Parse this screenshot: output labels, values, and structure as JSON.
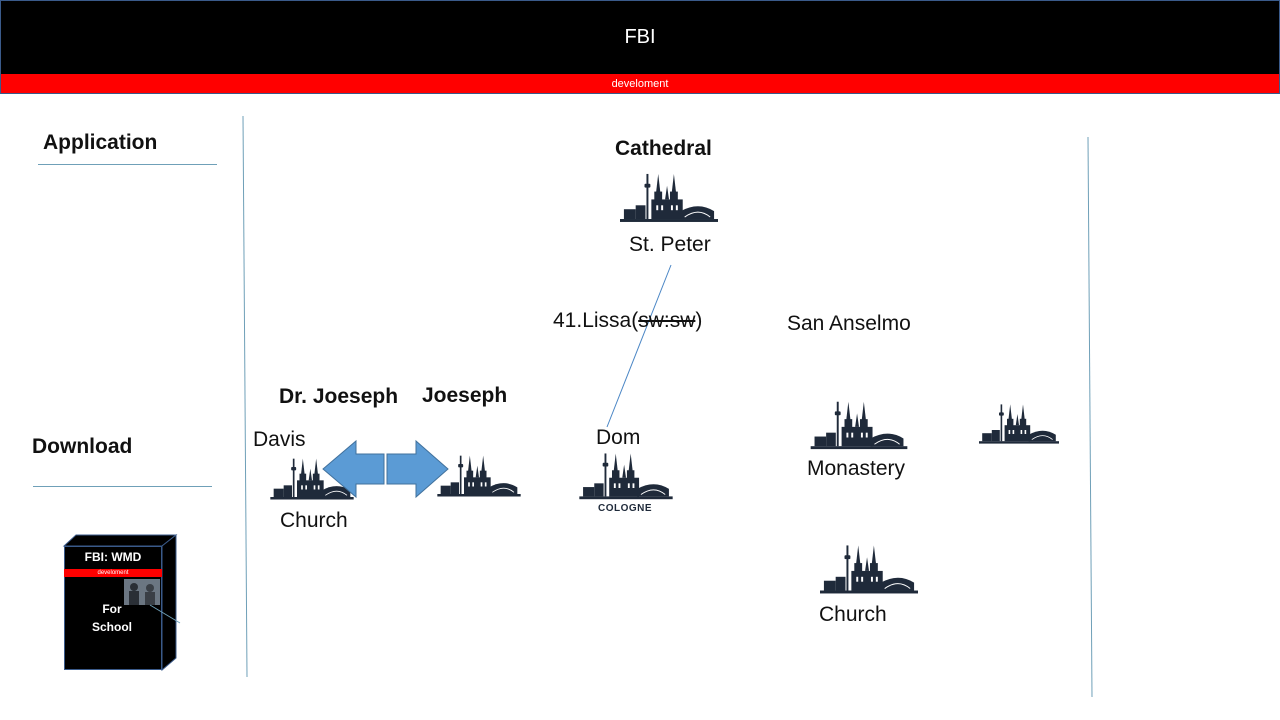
{
  "header": {
    "title": "FBI",
    "subtitle": "develoment"
  },
  "sidebar": {
    "application": "Application",
    "download": "Download"
  },
  "product_box": {
    "title": "FBI: WMD",
    "bar_label": "develoment",
    "line1": "For",
    "line2": "School"
  },
  "labels": {
    "cathedral": "Cathedral",
    "st_peter": "St. Peter",
    "lissa_prefix": "41.Lissa(",
    "lissa_struck": "sw:sw",
    "lissa_suffix": ")",
    "san_anselmo": "San Anselmo",
    "dr_joeseph": "Dr. Joeseph",
    "joeseph": "Joeseph",
    "davis": "Davis",
    "church_left": "Church",
    "dom": "Dom",
    "cologne": "COLOGNE",
    "monastery": "Monastery",
    "church_bottom": "Church"
  },
  "icons": {
    "cathedral": "cologne-cathedral-skyline-icon",
    "arrow_left": "arrow-left-icon",
    "arrow_right": "arrow-right-icon"
  },
  "colors": {
    "header_bg": "#000000",
    "subbar": "#ff0000",
    "arrow_fill": "#5b9bd5",
    "icon_fill": "#1f2a3a"
  }
}
